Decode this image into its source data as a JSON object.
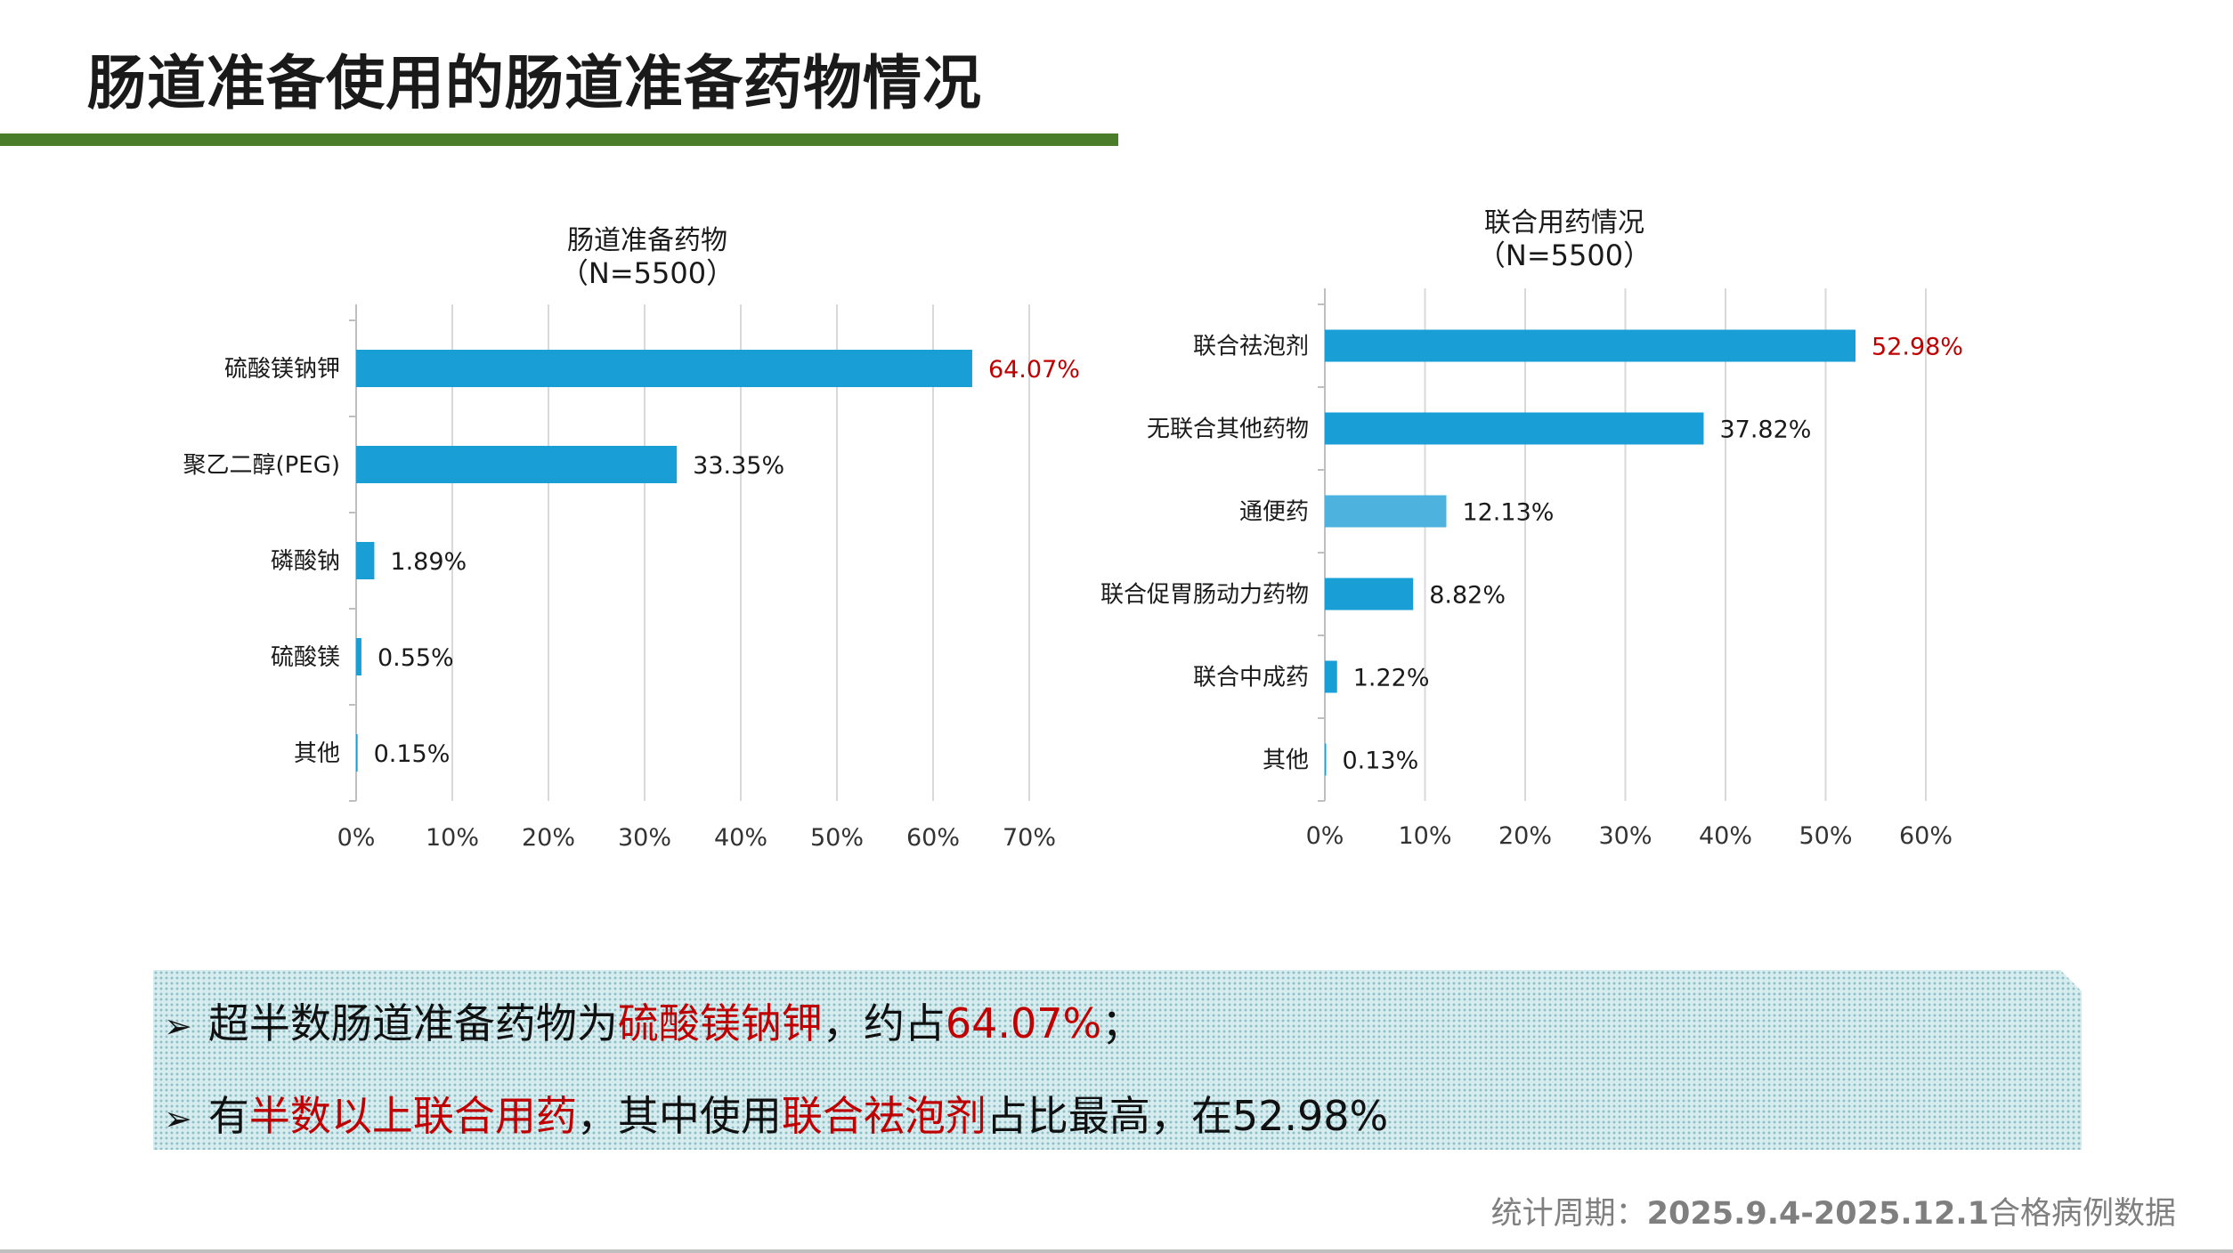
{
  "slide": {
    "title": "肠道准备使用的肠道准备药物情况"
  },
  "colors": {
    "accent_green": "#4a7d2a",
    "bar_blue": "#1a9ed6",
    "bar_light_blue": "#4db3de",
    "highlight_red": "#c00000"
  },
  "chart_data": [
    {
      "type": "bar",
      "orientation": "horizontal",
      "title": "肠道准备药物",
      "subtitle": "（N=5500）",
      "categories": [
        "硫酸镁钠钾",
        "聚乙二醇(PEG)",
        "磷酸钠",
        "硫酸镁",
        "其他"
      ],
      "values": [
        64.07,
        33.35,
        1.89,
        0.55,
        0.15
      ],
      "value_labels": [
        "64.07%",
        "33.35%",
        "1.89%",
        "0.55%",
        "0.15%"
      ],
      "highlight_index": 0,
      "xlim": [
        0,
        70
      ],
      "xticks": [
        "0%",
        "10%",
        "20%",
        "30%",
        "40%",
        "50%",
        "60%",
        "70%"
      ],
      "grid": true
    },
    {
      "type": "bar",
      "orientation": "horizontal",
      "title": "联合用药情况",
      "subtitle": "（N=5500）",
      "categories": [
        "联合祛泡剂",
        "无联合其他药物",
        "通便药",
        "联合促胃肠动力药物",
        "联合中成药",
        "其他"
      ],
      "values": [
        52.98,
        37.82,
        12.13,
        8.82,
        1.22,
        0.13
      ],
      "value_labels": [
        "52.98%",
        "37.82%",
        "12.13%",
        "8.82%",
        "1.22%",
        "0.13%"
      ],
      "highlight_index": 0,
      "light_index": 2,
      "xlim": [
        0,
        60
      ],
      "xticks": [
        "0%",
        "10%",
        "20%",
        "30%",
        "40%",
        "50%",
        "60%"
      ],
      "grid": true
    }
  ],
  "summary": {
    "arrow_icon": "➢",
    "line1": {
      "a": "超半数肠道准备药物为",
      "b": "硫酸镁钠钾",
      "c": "，约占",
      "d": "64.07%",
      "e": "；"
    },
    "line2": {
      "a": "有",
      "b": "半数以上联合用药",
      "c": "，其中使用",
      "d": "联合祛泡剂",
      "e": "占比最高，在52.98%"
    }
  },
  "footnote": {
    "label": "统计周期：",
    "value": "2025.9.4-2025.12.1",
    "suffix": "合格病例数据"
  }
}
